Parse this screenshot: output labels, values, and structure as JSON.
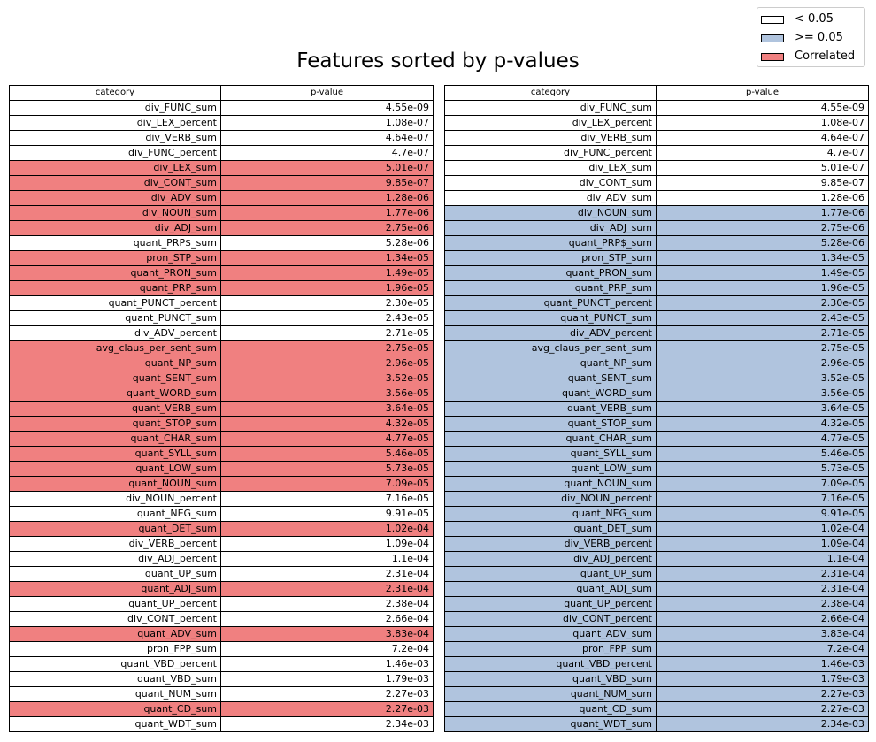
{
  "title": "Features sorted by p-values",
  "colors": {
    "low": "#ffffff",
    "high": "#b0c4de",
    "correlated": "#f08080"
  },
  "legend": [
    {
      "label": "< 0.05",
      "color": "#ffffff"
    },
    {
      "label": ">= 0.05",
      "color": "#b0c4de"
    },
    {
      "label": "Correlated",
      "color": "#f08080"
    }
  ],
  "chart_data": {
    "type": "table",
    "columns": [
      "category",
      "p-value"
    ],
    "rows": [
      {
        "category": "div_FUNC_sum",
        "p_value": "4.55e-09",
        "left": "low",
        "right": "low"
      },
      {
        "category": "div_LEX_percent",
        "p_value": "1.08e-07",
        "left": "low",
        "right": "low"
      },
      {
        "category": "div_VERB_sum",
        "p_value": "4.64e-07",
        "left": "low",
        "right": "low"
      },
      {
        "category": "div_FUNC_percent",
        "p_value": "4.7e-07",
        "left": "low",
        "right": "low"
      },
      {
        "category": "div_LEX_sum",
        "p_value": "5.01e-07",
        "left": "correlated",
        "right": "low"
      },
      {
        "category": "div_CONT_sum",
        "p_value": "9.85e-07",
        "left": "correlated",
        "right": "low"
      },
      {
        "category": "div_ADV_sum",
        "p_value": "1.28e-06",
        "left": "correlated",
        "right": "low"
      },
      {
        "category": "div_NOUN_sum",
        "p_value": "1.77e-06",
        "left": "correlated",
        "right": "high"
      },
      {
        "category": "div_ADJ_sum",
        "p_value": "2.75e-06",
        "left": "correlated",
        "right": "high"
      },
      {
        "category": "quant_PRP$_sum",
        "p_value": "5.28e-06",
        "left": "low",
        "right": "high"
      },
      {
        "category": "pron_STP_sum",
        "p_value": "1.34e-05",
        "left": "correlated",
        "right": "high"
      },
      {
        "category": "quant_PRON_sum",
        "p_value": "1.49e-05",
        "left": "correlated",
        "right": "high"
      },
      {
        "category": "quant_PRP_sum",
        "p_value": "1.96e-05",
        "left": "correlated",
        "right": "high"
      },
      {
        "category": "quant_PUNCT_percent",
        "p_value": "2.30e-05",
        "left": "low",
        "right": "high"
      },
      {
        "category": "quant_PUNCT_sum",
        "p_value": "2.43e-05",
        "left": "low",
        "right": "high"
      },
      {
        "category": "div_ADV_percent",
        "p_value": "2.71e-05",
        "left": "low",
        "right": "high"
      },
      {
        "category": "avg_claus_per_sent_sum",
        "p_value": "2.75e-05",
        "left": "correlated",
        "right": "high"
      },
      {
        "category": "quant_NP_sum",
        "p_value": "2.96e-05",
        "left": "correlated",
        "right": "high"
      },
      {
        "category": "quant_SENT_sum",
        "p_value": "3.52e-05",
        "left": "correlated",
        "right": "high"
      },
      {
        "category": "quant_WORD_sum",
        "p_value": "3.56e-05",
        "left": "correlated",
        "right": "high"
      },
      {
        "category": "quant_VERB_sum",
        "p_value": "3.64e-05",
        "left": "correlated",
        "right": "high"
      },
      {
        "category": "quant_STOP_sum",
        "p_value": "4.32e-05",
        "left": "correlated",
        "right": "high"
      },
      {
        "category": "quant_CHAR_sum",
        "p_value": "4.77e-05",
        "left": "correlated",
        "right": "high"
      },
      {
        "category": "quant_SYLL_sum",
        "p_value": "5.46e-05",
        "left": "correlated",
        "right": "high"
      },
      {
        "category": "quant_LOW_sum",
        "p_value": "5.73e-05",
        "left": "correlated",
        "right": "high"
      },
      {
        "category": "quant_NOUN_sum",
        "p_value": "7.09e-05",
        "left": "correlated",
        "right": "high"
      },
      {
        "category": "div_NOUN_percent",
        "p_value": "7.16e-05",
        "left": "low",
        "right": "high"
      },
      {
        "category": "quant_NEG_sum",
        "p_value": "9.91e-05",
        "left": "low",
        "right": "high"
      },
      {
        "category": "quant_DET_sum",
        "p_value": "1.02e-04",
        "left": "correlated",
        "right": "high"
      },
      {
        "category": "div_VERB_percent",
        "p_value": "1.09e-04",
        "left": "low",
        "right": "high"
      },
      {
        "category": "div_ADJ_percent",
        "p_value": "1.1e-04",
        "left": "low",
        "right": "high"
      },
      {
        "category": "quant_UP_sum",
        "p_value": "2.31e-04",
        "left": "low",
        "right": "high"
      },
      {
        "category": "quant_ADJ_sum",
        "p_value": "2.31e-04",
        "left": "correlated",
        "right": "high"
      },
      {
        "category": "quant_UP_percent",
        "p_value": "2.38e-04",
        "left": "low",
        "right": "high"
      },
      {
        "category": "div_CONT_percent",
        "p_value": "2.66e-04",
        "left": "low",
        "right": "high"
      },
      {
        "category": "quant_ADV_sum",
        "p_value": "3.83e-04",
        "left": "correlated",
        "right": "high"
      },
      {
        "category": "pron_FPP_sum",
        "p_value": "7.2e-04",
        "left": "low",
        "right": "high"
      },
      {
        "category": "quant_VBD_percent",
        "p_value": "1.46e-03",
        "left": "low",
        "right": "high"
      },
      {
        "category": "quant_VBD_sum",
        "p_value": "1.79e-03",
        "left": "low",
        "right": "high"
      },
      {
        "category": "quant_NUM_sum",
        "p_value": "2.27e-03",
        "left": "low",
        "right": "high"
      },
      {
        "category": "quant_CD_sum",
        "p_value": "2.27e-03",
        "left": "correlated",
        "right": "high"
      },
      {
        "category": "quant_WDT_sum",
        "p_value": "2.34e-03",
        "left": "low",
        "right": "high"
      }
    ]
  }
}
